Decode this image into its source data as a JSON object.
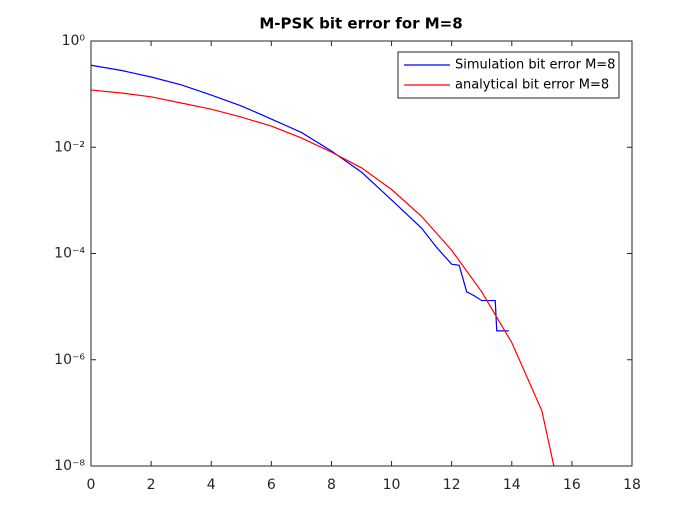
{
  "chart_data": {
    "type": "line",
    "title": "M-PSK bit error for M=8",
    "log_y": true,
    "legend": "upper right",
    "xlim": [
      0,
      18
    ],
    "xticks": [
      0,
      2,
      4,
      6,
      8,
      10,
      12,
      14,
      16,
      18
    ],
    "ylim": [
      1e-08,
      1
    ],
    "yticks": [
      {
        "value": 1,
        "label": "10⁰"
      },
      {
        "value": 0.01,
        "label": "10⁻²"
      },
      {
        "value": 0.0001,
        "label": "10⁻⁴"
      },
      {
        "value": 1e-06,
        "label": "10⁻⁶"
      },
      {
        "value": 1e-08,
        "label": "10⁻⁸"
      }
    ],
    "series": [
      {
        "name": "Simulation bit error M=8",
        "color": "#0000ff",
        "x": [
          0,
          1,
          2,
          3,
          4,
          5,
          6,
          7,
          8,
          9,
          10,
          11,
          11.5,
          12,
          12.25,
          12.5,
          12.75,
          13,
          13.45,
          13.5,
          13.9
        ],
        "values": [
          0.35,
          0.28,
          0.21,
          0.15,
          0.096,
          0.06,
          0.034,
          0.019,
          0.0085,
          0.0034,
          0.00102,
          0.0003,
          0.00013,
          6.3e-05,
          6e-05,
          1.9e-05,
          1.6e-05,
          1.3e-05,
          1.3e-05,
          3.5e-06,
          3.5e-06
        ]
      },
      {
        "name": "analytical bit error M=8",
        "color": "#ff0000",
        "x": [
          0,
          1,
          2,
          3,
          4,
          5,
          6,
          7,
          8,
          9,
          10,
          11,
          12,
          13,
          14,
          15,
          15.4
        ],
        "values": [
          0.12,
          0.105,
          0.089,
          0.068,
          0.052,
          0.037,
          0.025,
          0.015,
          0.0081,
          0.0041,
          0.0016,
          0.0005,
          0.000115,
          1.9e-05,
          2.1e-06,
          1.1e-07,
          1e-08
        ]
      }
    ]
  }
}
